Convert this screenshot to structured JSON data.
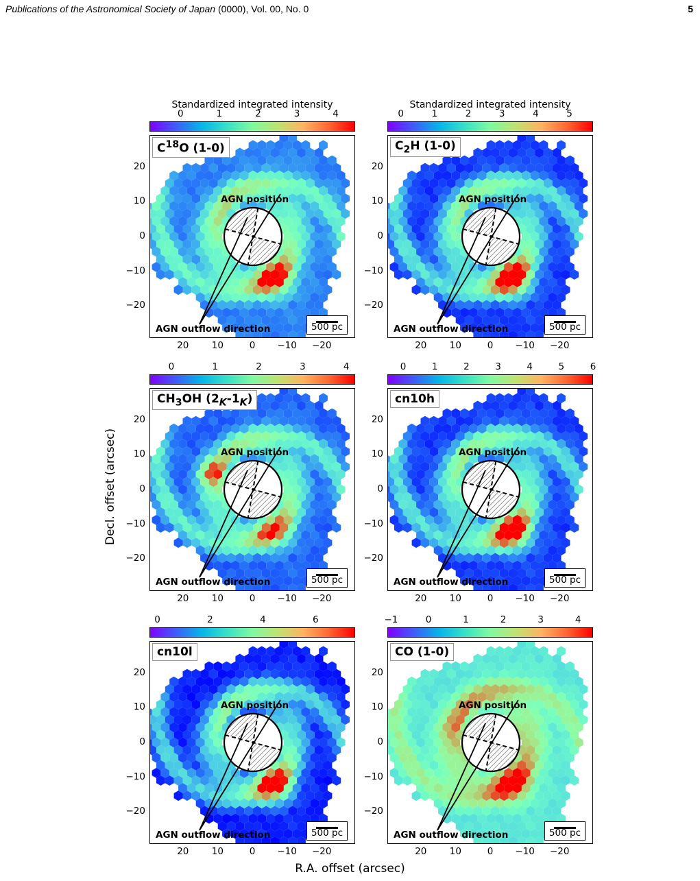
{
  "header": {
    "journal": "Publications of the Astronomical Society of Japan",
    "rest": " (0000), Vol. 00, No. 0",
    "page_number": "5"
  },
  "figure": {
    "xlabel": "R.A. offset (arcsec)",
    "ylabel": "Decl. offset (arcsec)",
    "cbar_title": "Standardized integrated intensity",
    "x_ticks": [
      "20",
      "10",
      "0",
      "−10",
      "−20"
    ],
    "y_ticks": [
      "20",
      "10",
      "0",
      "−10",
      "−20"
    ],
    "agn_position_label": "AGN position",
    "agn_outflow_label": "AGN outflow direction",
    "scale_bar_label": "500 pc",
    "colormap": "rainbow",
    "colors": {
      "low": "#8000ff",
      "mid": "#7ffa9f",
      "high": "#ff0000"
    }
  },
  "chart_data": [
    {
      "type": "heatmap",
      "label": "C18O",
      "label_html": "C<sup>18</sup>O (1-0)",
      "cbar_ticks": [
        "0",
        "1",
        "2",
        "3",
        "4"
      ],
      "cbar_values": [
        0,
        1,
        2,
        3,
        4
      ],
      "cbar_range": [
        -0.8,
        4.5
      ],
      "xlim": [
        29,
        -29
      ],
      "ylim": [
        -29,
        29
      ],
      "peak": 4.4,
      "show_cbar_title": true
    },
    {
      "type": "heatmap",
      "label": "C2H",
      "label_html": "C<sub>2</sub>H (1-0)",
      "cbar_ticks": [
        "0",
        "1",
        "2",
        "3",
        "4",
        "5"
      ],
      "cbar_values": [
        0,
        1,
        2,
        3,
        4,
        5
      ],
      "cbar_range": [
        -0.4,
        5.7
      ],
      "xlim": [
        29,
        -29
      ],
      "ylim": [
        -29,
        29
      ],
      "peak": 5.5,
      "show_cbar_title": true
    },
    {
      "type": "heatmap",
      "label": "CH3OH",
      "label_html": "CH<sub>3</sub>OH (2<sub><i>K</i></sub>-1<sub><i>K</i></sub>)",
      "cbar_ticks": [
        "0",
        "1",
        "2",
        "3",
        "4"
      ],
      "cbar_values": [
        0,
        1,
        2,
        3,
        4
      ],
      "cbar_range": [
        -0.5,
        4.2
      ],
      "xlim": [
        29,
        -29
      ],
      "ylim": [
        -29,
        29
      ],
      "peak": 4.1,
      "show_cbar_title": false
    },
    {
      "type": "heatmap",
      "label": "cn10h",
      "label_html": "cn10h",
      "cbar_ticks": [
        "0",
        "1",
        "2",
        "3",
        "4",
        "5",
        "6"
      ],
      "cbar_values": [
        0,
        1,
        2,
        3,
        4,
        5,
        6
      ],
      "cbar_range": [
        -0.5,
        6.0
      ],
      "xlim": [
        29,
        -29
      ],
      "ylim": [
        -29,
        29
      ],
      "peak": 5.8,
      "show_cbar_title": false
    },
    {
      "type": "heatmap",
      "label": "cn10l",
      "label_html": "cn10l",
      "cbar_ticks": [
        "0",
        "2",
        "4",
        "6"
      ],
      "cbar_values": [
        0,
        2,
        4,
        6
      ],
      "cbar_range": [
        -0.3,
        7.5
      ],
      "xlim": [
        29,
        -29
      ],
      "ylim": [
        -29,
        29
      ],
      "peak": 6.9,
      "show_cbar_title": false
    },
    {
      "type": "heatmap",
      "label": "CO (1-0)",
      "label_html": "CO (1-0)",
      "cbar_ticks": [
        "−1",
        "0",
        "1",
        "2",
        "3",
        "4"
      ],
      "cbar_values": [
        -1,
        0,
        1,
        2,
        3,
        4
      ],
      "cbar_range": [
        -1.1,
        4.4
      ],
      "xlim": [
        29,
        -29
      ],
      "ylim": [
        -29,
        29
      ],
      "peak": 4.2,
      "show_cbar_title": false
    }
  ]
}
